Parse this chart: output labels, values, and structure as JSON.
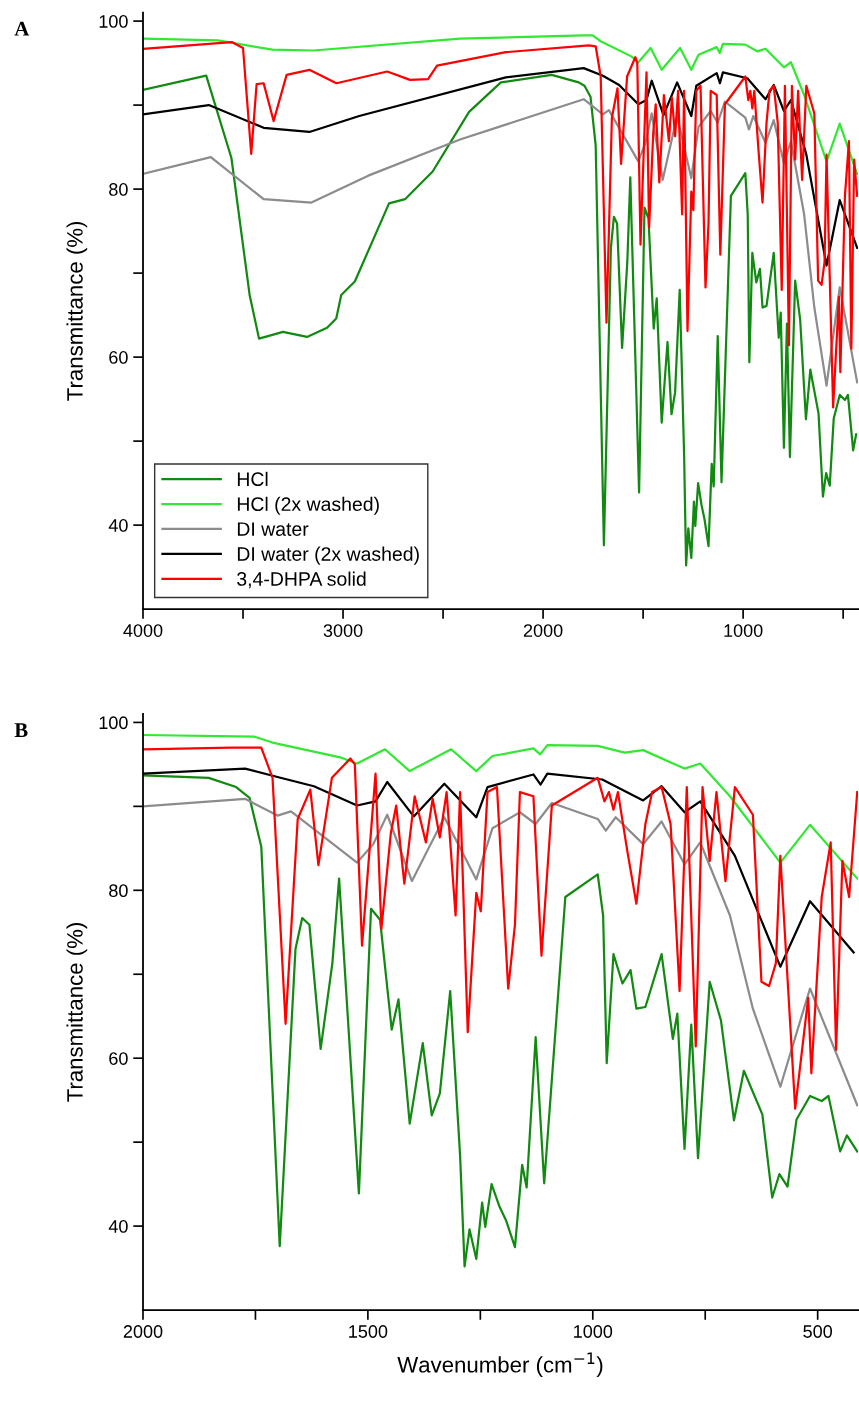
{
  "chart_data": [
    {
      "type": "line",
      "title": "A",
      "ylabel": "Transmittance (%)",
      "xlim": [
        4000,
        425
      ],
      "ylim": [
        30,
        101
      ],
      "xticks": [
        4000,
        {
          "value": 3500,
          "label": null
        },
        3000,
        {
          "value": 2500,
          "label": null
        },
        2000,
        {
          "value": 1500,
          "label": null
        },
        1000,
        {
          "value": 500,
          "label": null
        }
      ],
      "yticks": [
        40,
        {
          "value": 50,
          "label": null
        },
        60,
        {
          "value": 70,
          "label": null
        },
        80,
        {
          "value": 90,
          "label": null
        },
        100
      ],
      "legend": "bottom left",
      "series": [
        {
          "name": "HCl",
          "color": "#128a12",
          "x": [
            4000,
            3684,
            3558,
            3467,
            3420,
            3300,
            3180,
            3080,
            3034,
            3009,
            2941,
            2770,
            2690,
            2552,
            2370,
            2211,
            1957,
            1822,
            1793,
            1763,
            1737,
            1696,
            1661,
            1646,
            1630,
            1605,
            1579,
            1564,
            1520,
            1493,
            1473,
            1447,
            1432,
            1407,
            1378,
            1358,
            1340,
            1317,
            1295,
            1285,
            1274,
            1259,
            1246,
            1239,
            1225,
            1208,
            1193,
            1173,
            1157,
            1147,
            1127,
            1108,
            1061,
            989,
            977,
            969,
            954,
            934,
            916,
            903,
            883,
            847,
            822,
            812,
            796,
            781,
            766,
            740,
            715,
            686,
            664,
            623,
            601,
            585,
            567,
            547,
            517,
            491,
            476,
            450,
            435
          ],
          "values": [
            91.8,
            93.5,
            83.7,
            67.4,
            62.2,
            63.0,
            62.4,
            63.5,
            64.6,
            67.4,
            69.0,
            78.3,
            78.8,
            82.1,
            89.2,
            92.7,
            93.6,
            92.7,
            92.3,
            91.0,
            85.2,
            37.6,
            73.0,
            76.7,
            75.9,
            61.1,
            71.3,
            81.4,
            43.9,
            77.8,
            76.5,
            63.4,
            67.0,
            52.2,
            61.8,
            53.2,
            55.8,
            68.0,
            48.4,
            35.2,
            39.6,
            36.1,
            42.8,
            39.9,
            45.0,
            42.4,
            40.7,
            37.5,
            47.3,
            44.6,
            62.5,
            45.1,
            79.2,
            81.9,
            77.0,
            59.4,
            72.4,
            68.9,
            70.5,
            65.9,
            66.1,
            72.4,
            62.3,
            65.3,
            49.2,
            64.0,
            48.1,
            69.1,
            64.5,
            52.6,
            58.5,
            53.3,
            43.4,
            46.2,
            44.7,
            52.7,
            55.5,
            54.9,
            55.5,
            48.9,
            50.8
          ]
        },
        {
          "name": "HCl (2x washed)",
          "color": "#33e833",
          "x": [
            4000,
            3626,
            3352,
            3148,
            2415,
            1800,
            1752,
            1712,
            1559,
            1524,
            1462,
            1407,
            1315,
            1259,
            1223,
            1132,
            1117,
            1101,
            989,
            929,
            888,
            796,
            761,
            695,
            583,
            517,
            430
          ],
          "values": [
            97.9,
            97.7,
            96.6,
            96.5,
            97.9,
            98.3,
            98.3,
            97.6,
            95.8,
            95.1,
            96.8,
            94.2,
            96.8,
            94.2,
            96.0,
            96.9,
            96.2,
            97.3,
            97.2,
            96.4,
            96.7,
            94.5,
            95.1,
            91.2,
            83.3,
            87.8,
            81.8
          ]
        },
        {
          "name": "DI water",
          "color": "#8c8c8c",
          "x": [
            4000,
            3661,
            3397,
            3158,
            2874,
            2415,
            1797,
            1701,
            1671,
            1524,
            1488,
            1457,
            1402,
            1330,
            1259,
            1223,
            1162,
            1127,
            1091,
            989,
            971,
            949,
            888,
            847,
            796,
            761,
            695,
            644,
            583,
            517,
            430
          ],
          "values": [
            81.8,
            83.8,
            78.8,
            78.4,
            81.6,
            85.9,
            90.7,
            88.9,
            89.4,
            83.3,
            85.5,
            89.0,
            81.1,
            88.7,
            81.3,
            87.4,
            89.3,
            87.9,
            90.4,
            88.5,
            87.1,
            88.7,
            85.5,
            88.2,
            83.1,
            85.7,
            77.0,
            65.9,
            56.6,
            68.3,
            57.0
          ]
        },
        {
          "name": "DI water (2x washed)",
          "color": "#000000",
          "x": [
            4000,
            3671,
            3397,
            3168,
            2919,
            2186,
            1797,
            1701,
            1620,
            1524,
            1483,
            1457,
            1398,
            1330,
            1259,
            1234,
            1132,
            1116,
            1101,
            979,
            888,
            847,
            796,
            761,
            684,
            583,
            517,
            430
          ],
          "values": [
            88.9,
            90.0,
            87.3,
            86.8,
            88.7,
            93.3,
            94.4,
            93.5,
            92.4,
            90.1,
            90.6,
            92.9,
            88.8,
            92.7,
            88.7,
            92.3,
            93.8,
            92.6,
            93.9,
            93.2,
            90.7,
            92.4,
            89.3,
            90.6,
            84.1,
            70.9,
            78.7,
            73.0
          ]
        },
        {
          "name": "3,4-DHPA solid",
          "color": "#ff0000",
          "x": [
            4000,
            3556,
            3500,
            3459,
            3432,
            3397,
            3347,
            3282,
            3168,
            3033,
            2779,
            2665,
            2575,
            2530,
            2186,
            1772,
            1737,
            1712,
            1683,
            1656,
            1628,
            1610,
            1580,
            1539,
            1529,
            1513,
            1483,
            1470,
            1449,
            1437,
            1419,
            1396,
            1371,
            1356,
            1340,
            1325,
            1305,
            1295,
            1278,
            1259,
            1249,
            1234,
            1213,
            1188,
            1173,
            1162,
            1132,
            1114,
            1091,
            989,
            974,
            964,
            954,
            944,
            923,
            903,
            883,
            868,
            847,
            827,
            807,
            791,
            771,
            756,
            740,
            725,
            705,
            684,
            644,
            625,
            608,
            593,
            583,
            550,
            521,
            514,
            491,
            471,
            459,
            445,
            430
          ],
          "values": [
            96.7,
            97.5,
            96.8,
            84.2,
            92.5,
            92.6,
            88.1,
            93.6,
            94.2,
            92.6,
            94.0,
            93.0,
            93.1,
            94.7,
            96.3,
            97.1,
            97.0,
            93.4,
            64.1,
            88.5,
            92.0,
            83.0,
            93.4,
            95.7,
            95.0,
            73.4,
            93.9,
            75.4,
            86.8,
            90.1,
            80.8,
            91.2,
            85.7,
            90.9,
            86.3,
            91.7,
            77.0,
            91.7,
            63.1,
            79.7,
            77.5,
            91.7,
            92.3,
            68.3,
            75.9,
            91.7,
            91.2,
            72.2,
            90.1,
            93.4,
            90.6,
            91.7,
            89.6,
            91.7,
            84.6,
            78.4,
            87.9,
            91.7,
            92.3,
            87.9,
            68.0,
            92.3,
            61.4,
            92.3,
            83.5,
            91.7,
            81.1,
            92.3,
            89.0,
            69.1,
            68.6,
            71.3,
            84.1,
            54.0,
            67.2,
            58.2,
            79.2,
            85.7,
            61.0,
            83.5,
            79.2
          ]
        }
      ]
    },
    {
      "type": "line",
      "title": "B",
      "xlabel": "Wavenumber (cm$^{−1}$)",
      "ylabel": "Transmittance (%)",
      "xlim": [
        2000,
        410
      ],
      "ylim": [
        30,
        101
      ],
      "xticks": [
        2000,
        {
          "value": 1750,
          "label": null
        },
        1500,
        {
          "value": 1250,
          "label": null
        },
        1000,
        {
          "value": 750,
          "label": null
        },
        500
      ],
      "yticks": [
        40,
        {
          "value": 50,
          "label": null
        },
        60,
        {
          "value": 70,
          "label": null
        },
        80,
        {
          "value": 90,
          "label": null
        },
        100
      ],
      "series": [
        {
          "color": "#128a12",
          "x": [
            2000,
            1854,
            1793,
            1763,
            1737,
            1696,
            1661,
            1646,
            1630,
            1605,
            1579,
            1564,
            1520,
            1493,
            1473,
            1447,
            1432,
            1407,
            1378,
            1358,
            1340,
            1317,
            1295,
            1285,
            1274,
            1259,
            1246,
            1239,
            1225,
            1208,
            1193,
            1173,
            1157,
            1147,
            1127,
            1108,
            1061,
            989,
            977,
            969,
            954,
            934,
            916,
            903,
            883,
            847,
            822,
            812,
            796,
            781,
            766,
            740,
            715,
            686,
            664,
            623,
            601,
            585,
            567,
            547,
            517,
            491,
            476,
            450,
            435,
            412
          ],
          "values": [
            93.7,
            93.4,
            92.3,
            91.0,
            85.2,
            37.6,
            73.0,
            76.7,
            75.9,
            61.1,
            71.3,
            81.4,
            43.9,
            77.8,
            76.5,
            63.4,
            67.0,
            52.2,
            61.8,
            53.2,
            55.8,
            68.0,
            48.4,
            35.2,
            39.6,
            36.1,
            42.8,
            39.9,
            45.0,
            42.4,
            40.7,
            37.5,
            47.3,
            44.6,
            62.5,
            45.1,
            79.2,
            81.9,
            77.0,
            59.4,
            72.4,
            68.9,
            70.5,
            65.9,
            66.1,
            72.4,
            62.3,
            65.3,
            49.2,
            64.0,
            48.1,
            69.1,
            64.5,
            52.6,
            58.5,
            53.3,
            43.4,
            46.2,
            44.7,
            52.7,
            55.5,
            54.9,
            55.5,
            48.9,
            50.8,
            48.9
          ]
        },
        {
          "color": "#33e833",
          "x": [
            2000,
            1752,
            1712,
            1559,
            1524,
            1462,
            1407,
            1315,
            1259,
            1223,
            1132,
            1117,
            1101,
            989,
            929,
            888,
            796,
            761,
            695,
            583,
            517,
            412
          ],
          "values": [
            98.5,
            98.3,
            97.6,
            95.8,
            95.1,
            96.8,
            94.2,
            96.8,
            94.2,
            96.0,
            96.9,
            96.2,
            97.3,
            97.2,
            96.4,
            96.7,
            94.5,
            95.1,
            91.2,
            83.3,
            87.8,
            81.4
          ]
        },
        {
          "color": "#8c8c8c",
          "x": [
            2000,
            1773,
            1701,
            1671,
            1524,
            1488,
            1457,
            1402,
            1330,
            1259,
            1223,
            1162,
            1127,
            1091,
            989,
            971,
            949,
            888,
            847,
            796,
            761,
            695,
            644,
            583,
            517,
            412
          ],
          "values": [
            90.0,
            90.9,
            88.9,
            89.4,
            83.3,
            85.5,
            89.0,
            81.1,
            88.7,
            81.3,
            87.4,
            89.3,
            87.9,
            90.4,
            88.5,
            87.1,
            88.7,
            85.5,
            88.2,
            83.1,
            85.7,
            77.0,
            65.9,
            56.6,
            68.3,
            54.4
          ]
        },
        {
          "color": "#000000",
          "x": [
            2000,
            1773,
            1701,
            1620,
            1524,
            1483,
            1457,
            1398,
            1330,
            1259,
            1234,
            1132,
            1116,
            1101,
            979,
            888,
            847,
            796,
            761,
            684,
            583,
            517,
            420
          ],
          "values": [
            93.9,
            94.5,
            93.5,
            92.4,
            90.1,
            90.6,
            92.9,
            88.8,
            92.7,
            88.7,
            92.3,
            93.8,
            92.6,
            93.9,
            93.2,
            90.7,
            92.4,
            89.3,
            90.6,
            84.1,
            70.9,
            78.7,
            72.6
          ]
        },
        {
          "color": "#ff0000",
          "x": [
            2000,
            1803,
            1737,
            1712,
            1683,
            1656,
            1628,
            1610,
            1580,
            1539,
            1529,
            1513,
            1483,
            1470,
            1449,
            1437,
            1419,
            1396,
            1371,
            1356,
            1340,
            1325,
            1305,
            1295,
            1278,
            1259,
            1249,
            1234,
            1213,
            1188,
            1173,
            1162,
            1132,
            1114,
            1091,
            989,
            974,
            964,
            954,
            944,
            923,
            903,
            883,
            868,
            847,
            827,
            807,
            791,
            771,
            756,
            740,
            725,
            705,
            684,
            644,
            625,
            608,
            593,
            583,
            550,
            521,
            514,
            491,
            471,
            459,
            445,
            430,
            412
          ],
          "values": [
            96.8,
            97.0,
            97.0,
            93.4,
            64.1,
            88.5,
            92.0,
            83.0,
            93.4,
            95.7,
            95.0,
            73.4,
            93.9,
            75.4,
            86.8,
            90.1,
            80.8,
            91.2,
            85.7,
            90.9,
            86.3,
            91.7,
            77.0,
            91.7,
            63.1,
            79.7,
            77.5,
            91.7,
            92.3,
            68.3,
            75.9,
            91.7,
            91.2,
            72.2,
            90.1,
            93.4,
            90.6,
            91.7,
            89.6,
            91.7,
            84.6,
            78.4,
            87.9,
            91.7,
            92.3,
            87.9,
            68.0,
            92.3,
            61.4,
            92.3,
            83.5,
            91.7,
            81.1,
            92.3,
            89.0,
            69.1,
            68.6,
            71.3,
            84.1,
            54.0,
            67.2,
            58.2,
            79.2,
            85.7,
            61.0,
            83.5,
            79.2,
            91.7
          ]
        }
      ]
    }
  ]
}
